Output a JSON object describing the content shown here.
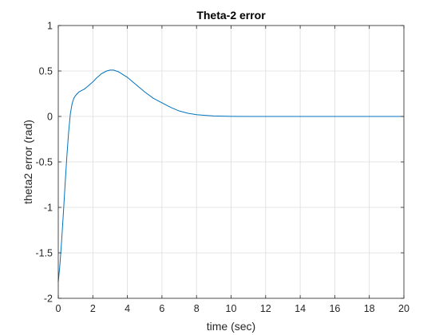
{
  "chart_data": {
    "type": "line",
    "title": "Theta-2 error",
    "xlabel": "time (sec)",
    "ylabel": "theta2 error (rad)",
    "xlim": [
      0,
      20
    ],
    "ylim": [
      -2,
      1
    ],
    "xticks": [
      0,
      2,
      4,
      6,
      8,
      10,
      12,
      14,
      16,
      18,
      20
    ],
    "yticks": [
      1,
      0.5,
      0,
      -0.5,
      -1,
      -1.5,
      -2
    ],
    "xtick_labels": [
      "0",
      "2",
      "4",
      "6",
      "8",
      "10",
      "12",
      "14",
      "16",
      "18",
      "20"
    ],
    "ytick_labels": [
      "1",
      "0.5",
      "0",
      "-0.5",
      "-1",
      "-1.5",
      "-2"
    ],
    "grid": true,
    "series": [
      {
        "color": "#0072BD",
        "x": [
          0,
          0.1,
          0.2,
          0.3,
          0.4,
          0.5,
          0.6,
          0.7,
          0.8,
          0.9,
          1.0,
          1.1,
          1.2,
          1.3,
          1.4,
          1.5,
          1.7,
          2.0,
          2.2,
          2.5,
          2.8,
          3.0,
          3.2,
          3.5,
          4.0,
          4.5,
          5.0,
          5.5,
          6.0,
          6.5,
          7.0,
          7.5,
          8.0,
          8.5,
          9.0,
          9.5,
          10,
          11,
          12,
          14,
          16,
          18,
          20
        ],
        "y": [
          -1.82,
          -1.62,
          -1.35,
          -1.05,
          -0.73,
          -0.43,
          -0.17,
          0.03,
          0.14,
          0.2,
          0.23,
          0.25,
          0.27,
          0.28,
          0.29,
          0.3,
          0.33,
          0.38,
          0.42,
          0.47,
          0.5,
          0.51,
          0.51,
          0.49,
          0.43,
          0.35,
          0.27,
          0.2,
          0.15,
          0.1,
          0.06,
          0.035,
          0.02,
          0.012,
          0.006,
          0.003,
          0.001,
          0.0,
          0.0,
          0.0,
          0.0,
          0.0,
          0.0
        ]
      }
    ]
  }
}
